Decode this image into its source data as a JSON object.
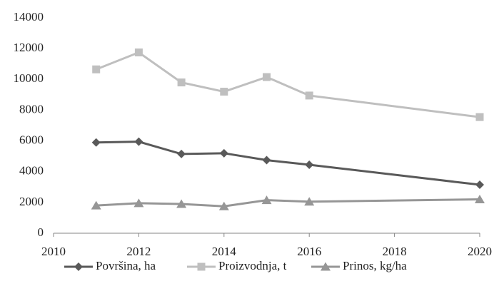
{
  "chart_data": {
    "type": "line",
    "x": [
      2011,
      2012,
      2013,
      2014,
      2015,
      2016,
      2020
    ],
    "series": [
      {
        "name": "Površina, ha",
        "color": "#595959",
        "marker": "diamond",
        "values": [
          5900,
          5950,
          5150,
          5200,
          4750,
          4450,
          3150
        ]
      },
      {
        "name": "Proizvodnja, t",
        "color": "#bfbfbf",
        "marker": "square",
        "values": [
          10650,
          11750,
          9800,
          9200,
          10150,
          8950,
          7550
        ]
      },
      {
        "name": "Prinos, kg/ha",
        "color": "#969696",
        "marker": "triangle",
        "values": [
          1800,
          1950,
          1900,
          1750,
          2150,
          2050,
          2200
        ]
      }
    ],
    "xlim": [
      2010,
      2020
    ],
    "xticks": [
      2010,
      2012,
      2014,
      2016,
      2018,
      2020
    ],
    "ylim": [
      0,
      14000
    ],
    "yticks": [
      0,
      2000,
      4000,
      6000,
      8000,
      10000,
      12000,
      14000
    ],
    "grid": false,
    "legend": "bottom"
  }
}
